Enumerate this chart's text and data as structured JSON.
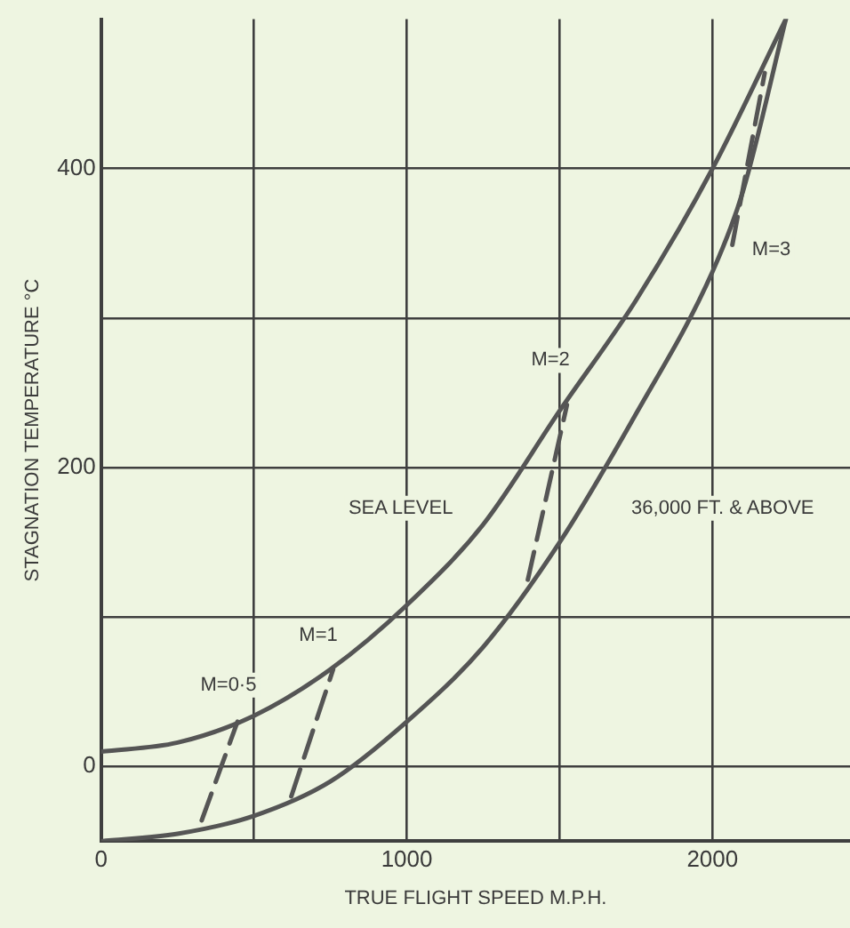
{
  "chart_data": {
    "type": "line",
    "xlabel": "TRUE FLIGHT SPEED M.P.H.",
    "ylabel": "STAGNATION TEMPERATURE °C",
    "xlim": [
      0,
      2450
    ],
    "ylim": [
      -50,
      500
    ],
    "xticks": [
      0,
      {
        "value": 500,
        "label": null
      },
      1000,
      {
        "value": 1500,
        "label": null
      },
      2000
    ],
    "yticks": [
      0,
      {
        "value": 100,
        "label": null
      },
      200,
      {
        "value": 300,
        "label": null
      },
      400
    ],
    "grid": true,
    "legend": false,
    "marker": "none",
    "series": [
      {
        "color": "#555555",
        "line_style": "solid",
        "x": [
          0,
          250,
          500,
          750,
          1000,
          1250,
          1500,
          1750,
          2000,
          2240
        ],
        "values": [
          10,
          16,
          34,
          65,
          108,
          162,
          238,
          312,
          400,
          500
        ]
      },
      {
        "color": "#555555",
        "line_style": "solid",
        "x": [
          0,
          250,
          500,
          750,
          1000,
          1250,
          1500,
          1750,
          2000,
          2100,
          2240
        ],
        "values": [
          -50,
          -45,
          -33,
          -10,
          30,
          80,
          150,
          236,
          331,
          385,
          500
        ]
      },
      {
        "color": "#555555",
        "line_style": "dashed",
        "x": [
          329,
          446
        ],
        "values": [
          -36,
          30
        ]
      },
      {
        "color": "#555555",
        "line_style": "dashed",
        "x": [
          622,
          759
        ],
        "values": [
          -20,
          65
        ]
      },
      {
        "color": "#555555",
        "line_style": "dashed",
        "x": [
          1396,
          1524
        ],
        "values": [
          125,
          242
        ]
      },
      {
        "color": "#555555",
        "line_style": "dashed",
        "x": [
          2065,
          2171
        ],
        "values": [
          349,
          464
        ]
      }
    ],
    "annotations": [
      "M=0·5",
      "M=1",
      "M=2",
      "M=3",
      "SEA LEVEL",
      "36,000 FT. & ABOVE"
    ]
  }
}
